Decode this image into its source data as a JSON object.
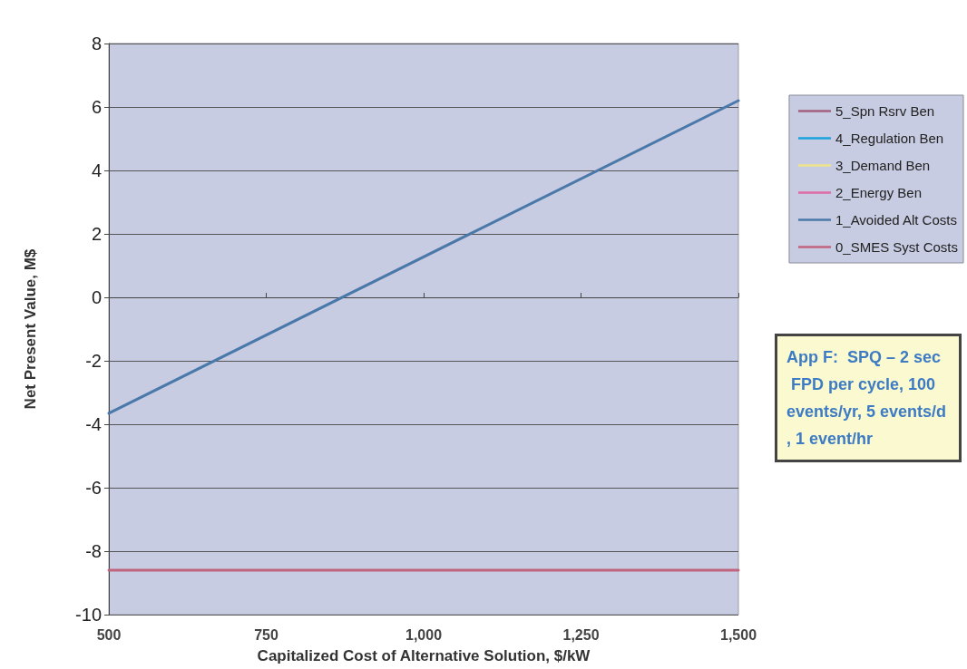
{
  "chart_data": {
    "type": "line",
    "xlabel": "Capitalized Cost of Alternative Solution, $/kW",
    "ylabel": "Net Present Value, M$",
    "x": [
      500,
      1500
    ],
    "series": [
      {
        "name": "5_Spn Rsrv Ben",
        "color": "#a3607e",
        "values": [
          null,
          null
        ]
      },
      {
        "name": "4_Regulation Ben",
        "color": "#1aa3dc",
        "values": [
          null,
          null
        ]
      },
      {
        "name": "3_Demand Ben",
        "color": "#eee48a",
        "values": [
          null,
          null
        ]
      },
      {
        "name": "2_Energy Ben",
        "color": "#df6aa5",
        "values": [
          null,
          null
        ]
      },
      {
        "name": "1_Avoided Alt Costs",
        "color": "#4a78a8",
        "values": [
          -3.65,
          6.2
        ]
      },
      {
        "name": "0_SMES Syst Costs",
        "color": "#c0647e",
        "values": [
          -8.6,
          -8.6
        ]
      }
    ],
    "xlim": [
      500,
      1500
    ],
    "xticks": [
      500,
      750,
      {
        "value": 1000,
        "label": "1,000"
      },
      {
        "value": 1250,
        "label": "1,250"
      },
      {
        "value": 1500,
        "label": "1,500"
      }
    ],
    "ylim": [
      -10,
      8
    ],
    "yticks": [
      -10,
      -8,
      -6,
      -4,
      -2,
      0,
      2,
      4,
      6,
      8
    ],
    "grid": "y",
    "legend": "right",
    "marker": "none",
    "line_style": "solid",
    "annotations": [
      "App F:  SPQ – 2 sec FPD per cycle, 100 events/yr, 5 events/d, 1 event/hr"
    ]
  }
}
